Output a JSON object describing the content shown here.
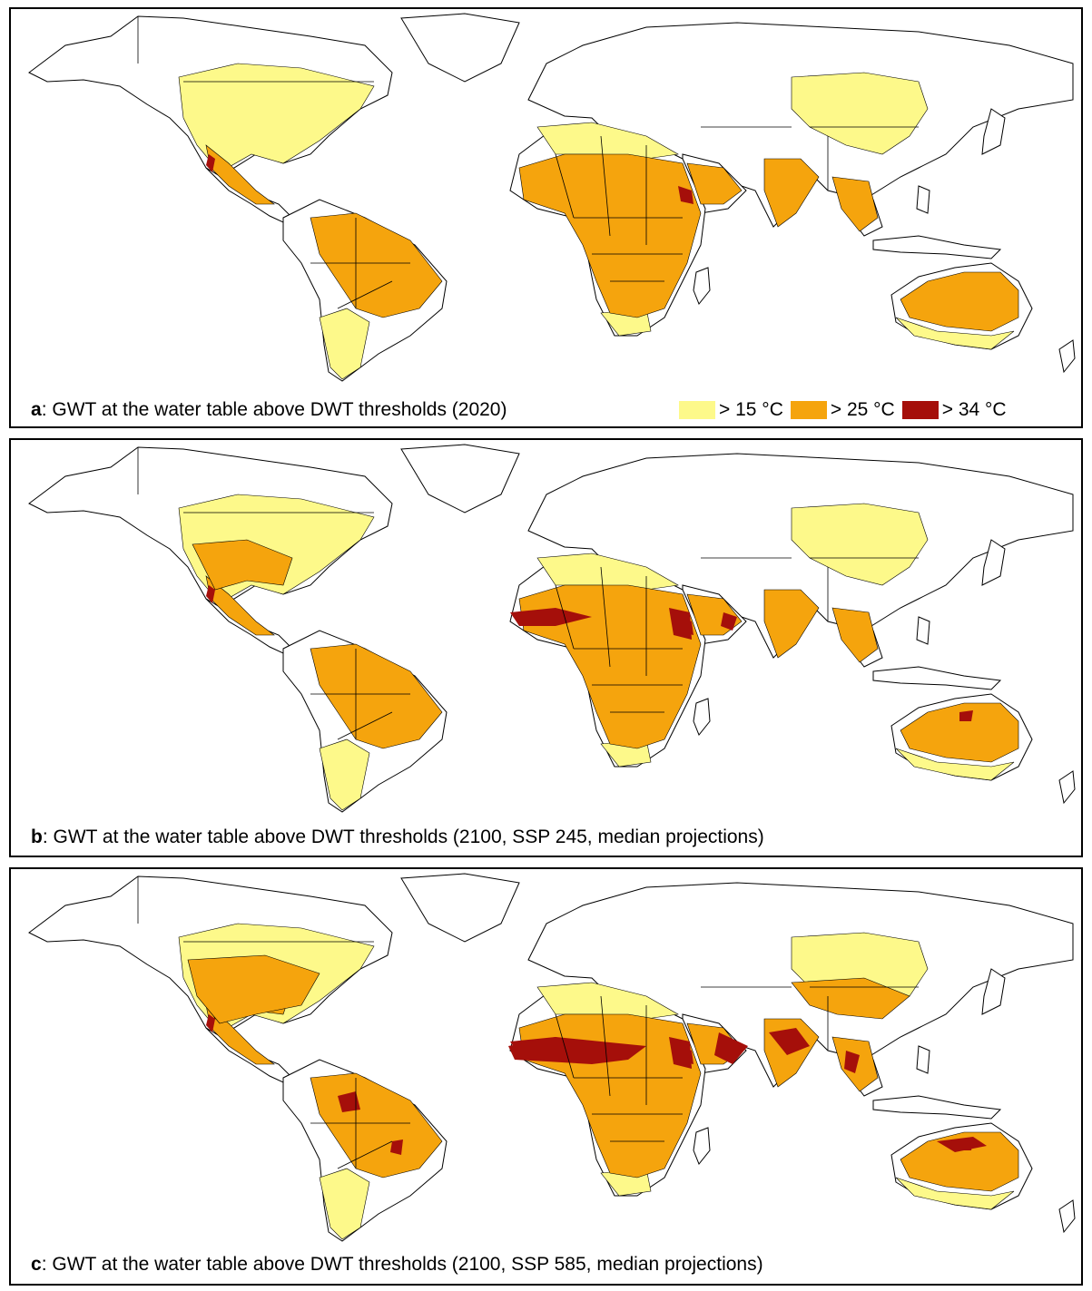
{
  "panels": [
    {
      "letter": "a",
      "caption": ": GWT at the water table above DWT thresholds (2020)",
      "level": 1
    },
    {
      "letter": "b",
      "caption": ": GWT at the water table above DWT thresholds (2100, SSP 245, median projections)",
      "level": 2
    },
    {
      "letter": "c",
      "caption": ": GWT at the water table above DWT thresholds (2100, SSP 585, median projections)",
      "level": 3
    }
  ],
  "legend": {
    "items": [
      {
        "label": "> 15 °C",
        "color": "#fdf98a"
      },
      {
        "label": "> 25 °C",
        "color": "#f5a40d"
      },
      {
        "label": "> 34 °C",
        "color": "#a50f0a"
      }
    ]
  }
}
